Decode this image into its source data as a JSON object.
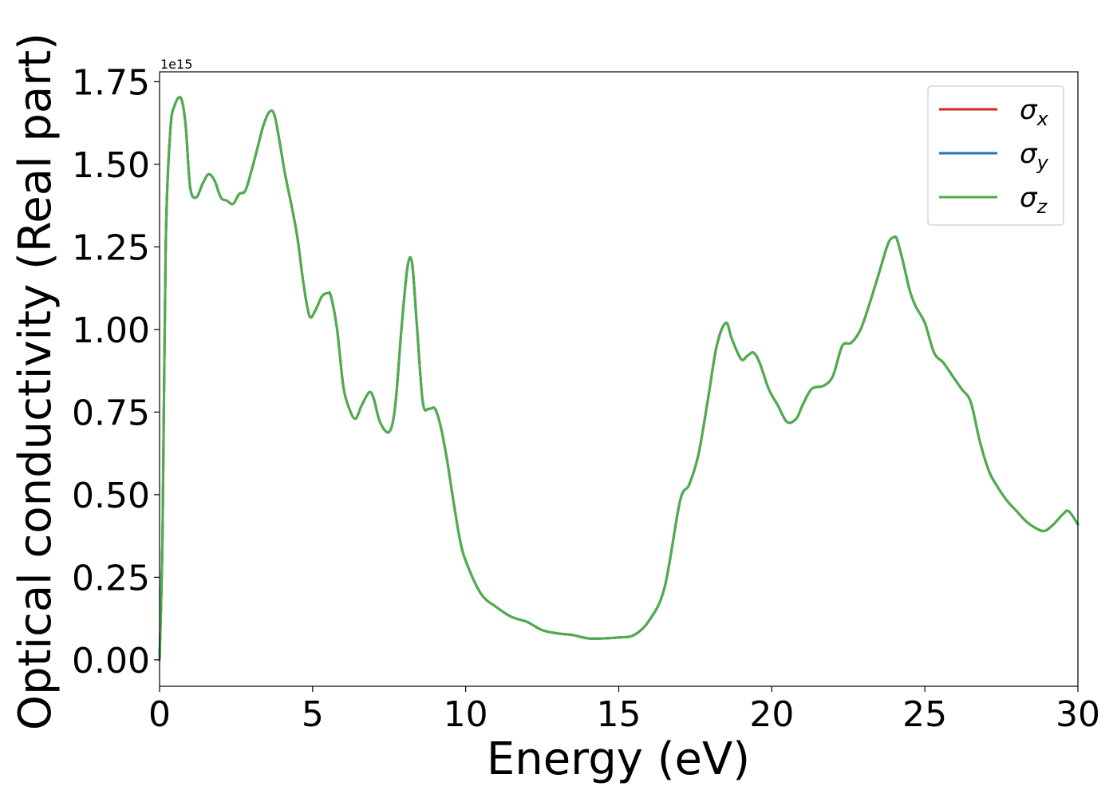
{
  "chart_data": {
    "type": "line",
    "title": "",
    "xlabel": "Energy (eV)",
    "ylabel": "Optical conductivity (Real part)",
    "y_offset_text": "1e15",
    "xlim": [
      0,
      30
    ],
    "ylim": [
      -0.08,
      1.78
    ],
    "x_ticks": [
      0,
      5,
      10,
      15,
      20,
      25,
      30
    ],
    "x_tick_labels": [
      "0",
      "5",
      "10",
      "15",
      "20",
      "25",
      "30"
    ],
    "y_ticks": [
      0.0,
      0.25,
      0.5,
      0.75,
      1.0,
      1.25,
      1.5,
      1.75
    ],
    "y_tick_labels": [
      "0.00",
      "0.25",
      "0.50",
      "0.75",
      "1.00",
      "1.25",
      "1.50",
      "1.75"
    ],
    "grid": false,
    "legend_position": "top-right",
    "series": [
      {
        "name": "σ_x",
        "symbol": "σ",
        "subscript": "x",
        "color": "#d62728",
        "x": [
          0,
          0.1,
          0.2,
          0.35,
          0.5,
          0.7,
          0.85,
          1.0,
          1.2,
          1.4,
          1.6,
          1.8,
          2.0,
          2.2,
          2.4,
          2.6,
          2.8,
          3.0,
          3.2,
          3.4,
          3.6,
          3.75,
          3.9,
          4.1,
          4.3,
          4.5,
          4.7,
          4.9,
          5.1,
          5.3,
          5.5,
          5.6,
          5.8,
          6.0,
          6.2,
          6.4,
          6.6,
          6.85,
          7.0,
          7.2,
          7.5,
          7.7,
          7.9,
          8.1,
          8.25,
          8.4,
          8.6,
          8.8,
          9.0,
          9.2,
          9.4,
          9.6,
          9.8,
          10.0,
          10.5,
          11.0,
          11.5,
          12.0,
          12.5,
          13.0,
          13.5,
          14.0,
          14.5,
          15.0,
          15.5,
          16.0,
          16.5,
          17.0,
          17.3,
          17.6,
          17.9,
          18.2,
          18.5,
          18.7,
          19.0,
          19.2,
          19.4,
          19.6,
          19.9,
          20.2,
          20.5,
          20.8,
          21.0,
          21.3,
          21.7,
          22.0,
          22.3,
          22.6,
          22.9,
          23.2,
          23.5,
          23.8,
          24.0,
          24.1,
          24.3,
          24.5,
          24.7,
          25.0,
          25.3,
          25.6,
          25.9,
          26.2,
          26.5,
          26.8,
          27.1,
          27.4,
          27.7,
          28.0,
          28.3,
          28.6,
          28.9,
          29.2,
          29.5,
          29.7,
          30.0
        ],
        "y": [
          0.0,
          0.4,
          1.25,
          1.6,
          1.68,
          1.7,
          1.62,
          1.43,
          1.4,
          1.44,
          1.47,
          1.45,
          1.4,
          1.39,
          1.38,
          1.41,
          1.42,
          1.48,
          1.55,
          1.62,
          1.66,
          1.65,
          1.58,
          1.47,
          1.38,
          1.28,
          1.14,
          1.04,
          1.06,
          1.1,
          1.11,
          1.1,
          1.0,
          0.83,
          0.76,
          0.73,
          0.77,
          0.81,
          0.79,
          0.72,
          0.69,
          0.77,
          1.0,
          1.19,
          1.2,
          1.02,
          0.78,
          0.76,
          0.76,
          0.7,
          0.6,
          0.48,
          0.37,
          0.3,
          0.2,
          0.16,
          0.13,
          0.115,
          0.09,
          0.08,
          0.075,
          0.065,
          0.065,
          0.068,
          0.075,
          0.12,
          0.22,
          0.48,
          0.53,
          0.62,
          0.78,
          0.95,
          1.02,
          0.97,
          0.91,
          0.92,
          0.93,
          0.9,
          0.82,
          0.77,
          0.72,
          0.73,
          0.77,
          0.82,
          0.83,
          0.86,
          0.95,
          0.96,
          1.0,
          1.08,
          1.17,
          1.26,
          1.28,
          1.27,
          1.2,
          1.12,
          1.07,
          1.02,
          0.93,
          0.9,
          0.86,
          0.82,
          0.78,
          0.66,
          0.57,
          0.52,
          0.48,
          0.45,
          0.42,
          0.4,
          0.39,
          0.41,
          0.44,
          0.45,
          0.41
        ]
      },
      {
        "name": "σ_y",
        "symbol": "σ",
        "subscript": "y",
        "color": "#1f77b4",
        "x": [
          0,
          0.1,
          0.2,
          0.35,
          0.5,
          0.7,
          0.85,
          1.0,
          1.2,
          1.4,
          1.6,
          1.8,
          2.0,
          2.2,
          2.4,
          2.6,
          2.8,
          3.0,
          3.2,
          3.4,
          3.6,
          3.75,
          3.9,
          4.1,
          4.3,
          4.5,
          4.7,
          4.9,
          5.1,
          5.3,
          5.5,
          5.6,
          5.8,
          6.0,
          6.2,
          6.4,
          6.6,
          6.85,
          7.0,
          7.2,
          7.5,
          7.7,
          7.9,
          8.1,
          8.25,
          8.4,
          8.6,
          8.8,
          9.0,
          9.2,
          9.4,
          9.6,
          9.8,
          10.0,
          10.5,
          11.0,
          11.5,
          12.0,
          12.5,
          13.0,
          13.5,
          14.0,
          14.5,
          15.0,
          15.5,
          16.0,
          16.5,
          17.0,
          17.3,
          17.6,
          17.9,
          18.2,
          18.5,
          18.7,
          19.0,
          19.2,
          19.4,
          19.6,
          19.9,
          20.2,
          20.5,
          20.8,
          21.0,
          21.3,
          21.7,
          22.0,
          22.3,
          22.6,
          22.9,
          23.2,
          23.5,
          23.8,
          24.0,
          24.1,
          24.3,
          24.5,
          24.7,
          25.0,
          25.3,
          25.6,
          25.9,
          26.2,
          26.5,
          26.8,
          27.1,
          27.4,
          27.7,
          28.0,
          28.3,
          28.6,
          28.9,
          29.2,
          29.5,
          29.7,
          30.0
        ],
        "y": [
          0.0,
          0.4,
          1.25,
          1.6,
          1.68,
          1.7,
          1.62,
          1.43,
          1.4,
          1.44,
          1.47,
          1.45,
          1.4,
          1.39,
          1.38,
          1.41,
          1.42,
          1.48,
          1.55,
          1.62,
          1.66,
          1.65,
          1.58,
          1.47,
          1.38,
          1.28,
          1.14,
          1.04,
          1.06,
          1.1,
          1.11,
          1.1,
          1.0,
          0.83,
          0.76,
          0.73,
          0.77,
          0.81,
          0.79,
          0.72,
          0.69,
          0.77,
          1.0,
          1.19,
          1.2,
          1.02,
          0.78,
          0.76,
          0.76,
          0.7,
          0.6,
          0.48,
          0.37,
          0.3,
          0.2,
          0.16,
          0.13,
          0.115,
          0.09,
          0.08,
          0.075,
          0.065,
          0.065,
          0.068,
          0.075,
          0.12,
          0.22,
          0.48,
          0.53,
          0.62,
          0.78,
          0.95,
          1.02,
          0.97,
          0.91,
          0.92,
          0.93,
          0.9,
          0.82,
          0.77,
          0.72,
          0.73,
          0.77,
          0.82,
          0.83,
          0.86,
          0.95,
          0.96,
          1.0,
          1.08,
          1.17,
          1.26,
          1.28,
          1.27,
          1.2,
          1.12,
          1.07,
          1.02,
          0.93,
          0.9,
          0.86,
          0.82,
          0.78,
          0.66,
          0.57,
          0.52,
          0.48,
          0.45,
          0.42,
          0.4,
          0.39,
          0.41,
          0.44,
          0.45,
          0.41
        ]
      },
      {
        "name": "σ_z",
        "symbol": "σ",
        "subscript": "z",
        "color": "#4daf4a",
        "x": [
          0,
          0.1,
          0.2,
          0.35,
          0.5,
          0.7,
          0.85,
          1.0,
          1.2,
          1.4,
          1.6,
          1.8,
          2.0,
          2.2,
          2.4,
          2.6,
          2.8,
          3.0,
          3.2,
          3.4,
          3.6,
          3.75,
          3.9,
          4.1,
          4.3,
          4.5,
          4.7,
          4.9,
          5.1,
          5.3,
          5.5,
          5.6,
          5.8,
          6.0,
          6.2,
          6.4,
          6.6,
          6.85,
          7.0,
          7.2,
          7.5,
          7.7,
          7.9,
          8.1,
          8.25,
          8.4,
          8.6,
          8.8,
          9.0,
          9.2,
          9.4,
          9.6,
          9.8,
          10.0,
          10.5,
          11.0,
          11.5,
          12.0,
          12.5,
          13.0,
          13.5,
          14.0,
          14.5,
          15.0,
          15.5,
          16.0,
          16.5,
          17.0,
          17.3,
          17.6,
          17.9,
          18.2,
          18.5,
          18.7,
          19.0,
          19.2,
          19.4,
          19.6,
          19.9,
          20.2,
          20.5,
          20.8,
          21.0,
          21.3,
          21.7,
          22.0,
          22.3,
          22.6,
          22.9,
          23.2,
          23.5,
          23.8,
          24.0,
          24.1,
          24.3,
          24.5,
          24.7,
          25.0,
          25.3,
          25.6,
          25.9,
          26.2,
          26.5,
          26.8,
          27.1,
          27.4,
          27.7,
          28.0,
          28.3,
          28.6,
          28.9,
          29.2,
          29.5,
          29.7,
          30.0
        ],
        "y": [
          0.0,
          0.4,
          1.25,
          1.6,
          1.68,
          1.7,
          1.62,
          1.43,
          1.4,
          1.44,
          1.47,
          1.45,
          1.4,
          1.39,
          1.38,
          1.41,
          1.42,
          1.48,
          1.55,
          1.62,
          1.66,
          1.65,
          1.58,
          1.47,
          1.38,
          1.28,
          1.14,
          1.04,
          1.06,
          1.1,
          1.11,
          1.1,
          1.0,
          0.83,
          0.76,
          0.73,
          0.77,
          0.81,
          0.79,
          0.72,
          0.69,
          0.77,
          1.0,
          1.19,
          1.2,
          1.02,
          0.78,
          0.76,
          0.76,
          0.7,
          0.6,
          0.48,
          0.37,
          0.3,
          0.2,
          0.16,
          0.13,
          0.115,
          0.09,
          0.08,
          0.075,
          0.065,
          0.065,
          0.068,
          0.075,
          0.12,
          0.22,
          0.48,
          0.53,
          0.62,
          0.78,
          0.95,
          1.02,
          0.97,
          0.91,
          0.92,
          0.93,
          0.9,
          0.82,
          0.77,
          0.72,
          0.73,
          0.77,
          0.82,
          0.83,
          0.86,
          0.95,
          0.96,
          1.0,
          1.08,
          1.17,
          1.26,
          1.28,
          1.27,
          1.2,
          1.12,
          1.07,
          1.02,
          0.93,
          0.9,
          0.86,
          0.82,
          0.78,
          0.66,
          0.57,
          0.52,
          0.48,
          0.45,
          0.42,
          0.4,
          0.39,
          0.41,
          0.44,
          0.45,
          0.41
        ]
      }
    ]
  }
}
